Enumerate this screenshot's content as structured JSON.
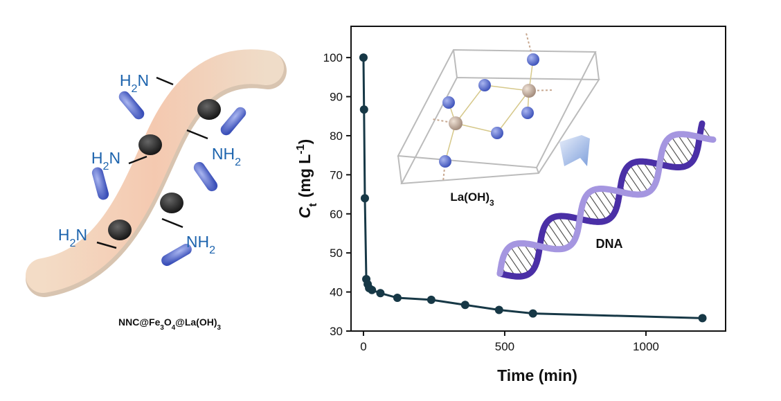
{
  "chart_data": {
    "type": "line",
    "x": [
      0,
      2,
      5,
      10,
      15,
      20,
      30,
      60,
      120,
      240,
      360,
      480,
      600,
      1200
    ],
    "values": [
      100,
      86.7,
      64,
      43.3,
      42,
      41,
      40.5,
      39.7,
      38.5,
      38,
      36.7,
      35.4,
      34.5,
      33.3
    ],
    "color": "#173846",
    "xlim": [
      -44,
      1282
    ],
    "xticks": [
      0,
      500,
      1000
    ],
    "ylim": [
      30,
      108
    ],
    "yticks": [
      30,
      40,
      50,
      60,
      70,
      80,
      90,
      100
    ],
    "xlabel": "Time (min)",
    "ylabel_parts": [
      "C",
      "t",
      "(mg L",
      "-1",
      ")"
    ],
    "illustration": {
      "material_label": [
        "NNC@Fe",
        "3",
        "O",
        "4",
        "@La(OH)",
        "3"
      ],
      "amine_labels": [
        [
          "H",
          "2",
          "N"
        ],
        [
          "NH",
          "2"
        ],
        [
          "H",
          "2",
          "N"
        ],
        [
          "H",
          "2",
          "N"
        ],
        [
          "NH",
          "2"
        ]
      ],
      "crystal_label": [
        "La(OH)",
        "3"
      ],
      "dna_label": "DNA"
    }
  }
}
